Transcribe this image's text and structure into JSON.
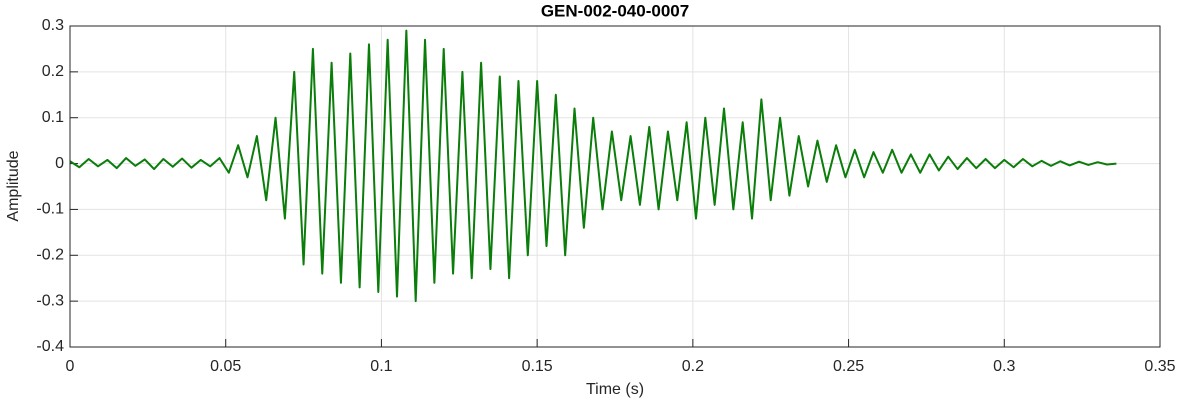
{
  "chart_data": {
    "type": "line",
    "title": "GEN-002-040-0007",
    "x_label": "Time (s)",
    "y_label": "Amplitude",
    "x": [
      0,
      0.003,
      0.006,
      0.009,
      0.012,
      0.015,
      0.018,
      0.021,
      0.024,
      0.027,
      0.03,
      0.033,
      0.036,
      0.039,
      0.042,
      0.045,
      0.048,
      0.051,
      0.054,
      0.057,
      0.06,
      0.063,
      0.066,
      0.069,
      0.072,
      0.075,
      0.078,
      0.081,
      0.084,
      0.087,
      0.09,
      0.093,
      0.096,
      0.099,
      0.102,
      0.105,
      0.108,
      0.111,
      0.114,
      0.117,
      0.12,
      0.123,
      0.126,
      0.129,
      0.132,
      0.135,
      0.138,
      0.141,
      0.144,
      0.147,
      0.15,
      0.153,
      0.156,
      0.159,
      0.162,
      0.165,
      0.168,
      0.171,
      0.174,
      0.177,
      0.18,
      0.183,
      0.186,
      0.189,
      0.192,
      0.195,
      0.198,
      0.201,
      0.204,
      0.207,
      0.21,
      0.213,
      0.216,
      0.219,
      0.222,
      0.225,
      0.228,
      0.231,
      0.234,
      0.237,
      0.24,
      0.243,
      0.246,
      0.249,
      0.252,
      0.255,
      0.258,
      0.261,
      0.264,
      0.267,
      0.27,
      0.273,
      0.276,
      0.279,
      0.282,
      0.285,
      0.288,
      0.291,
      0.294,
      0.297,
      0.3,
      0.303,
      0.306,
      0.309,
      0.312,
      0.315,
      0.318,
      0.321,
      0.324,
      0.327,
      0.33,
      0.333,
      0.336
    ],
    "values": [
      0.005,
      -0.008,
      0.01,
      -0.006,
      0.008,
      -0.01,
      0.012,
      -0.005,
      0.009,
      -0.012,
      0.01,
      -0.007,
      0.011,
      -0.009,
      0.008,
      -0.006,
      0.012,
      -0.02,
      0.04,
      -0.03,
      0.06,
      -0.08,
      0.1,
      -0.12,
      0.2,
      -0.22,
      0.25,
      -0.24,
      0.22,
      -0.26,
      0.24,
      -0.27,
      0.26,
      -0.28,
      0.27,
      -0.29,
      0.29,
      -0.3,
      0.27,
      -0.26,
      0.25,
      -0.24,
      0.2,
      -0.25,
      0.22,
      -0.23,
      0.19,
      -0.25,
      0.18,
      -0.2,
      0.18,
      -0.18,
      0.15,
      -0.2,
      0.12,
      -0.14,
      0.1,
      -0.1,
      0.07,
      -0.08,
      0.06,
      -0.09,
      0.08,
      -0.1,
      0.07,
      -0.08,
      0.09,
      -0.12,
      0.1,
      -0.09,
      0.12,
      -0.1,
      0.09,
      -0.12,
      0.14,
      -0.08,
      0.1,
      -0.07,
      0.06,
      -0.05,
      0.05,
      -0.04,
      0.04,
      -0.03,
      0.03,
      -0.03,
      0.025,
      -0.02,
      0.03,
      -0.02,
      0.02,
      -0.02,
      0.02,
      -0.015,
      0.015,
      -0.012,
      0.012,
      -0.01,
      0.01,
      -0.01,
      0.008,
      -0.008,
      0.01,
      -0.006,
      0.006,
      -0.005,
      0.005,
      -0.004,
      0.004,
      -0.003,
      0.003,
      -0.002,
      0
    ],
    "color": "#0a7d0a",
    "xlim": [
      0,
      0.35
    ],
    "xticks": [
      0,
      0.05,
      0.1,
      0.15,
      0.2,
      0.25,
      0.3,
      0.35
    ],
    "ylim": [
      -0.4,
      0.3
    ],
    "yticks": [
      -0.4,
      -0.3,
      -0.2,
      -0.1,
      0,
      0.1,
      0.2,
      0.3
    ],
    "grid": true
  }
}
